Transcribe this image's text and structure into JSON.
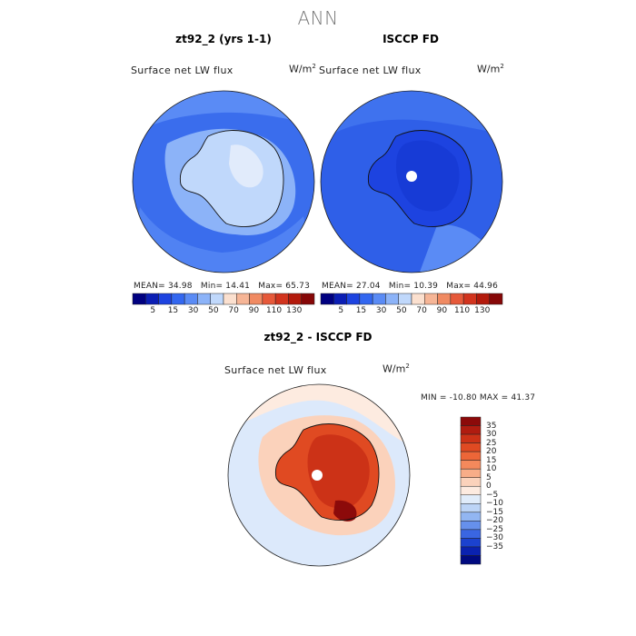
{
  "figure": {
    "title": "ANN"
  },
  "chart_data": [
    {
      "type": "heatmap",
      "panel_title": "zt92_2 (yrs 1-1)",
      "variable": "Surface net LW flux",
      "units": "W/m",
      "units_exp": "2",
      "projection": "south polar stereographic",
      "stats": {
        "mean_label": "MEAN=",
        "mean": "34.98",
        "min_label": "Min=",
        "min": "14.41",
        "max_label": "Max=",
        "max": "65.73"
      },
      "colorbar": {
        "ticks": [
          "5",
          "15",
          "30",
          "50",
          "70",
          "90",
          "110",
          "130"
        ],
        "colors": [
          "#000080",
          "#0b1eb4",
          "#1d43e0",
          "#3367f0",
          "#5a8bf5",
          "#8cb3f8",
          "#c0d8fb",
          "#fbe0cf",
          "#f6b596",
          "#f08a62",
          "#e6593a",
          "#d2341e",
          "#b31a0c",
          "#860707"
        ]
      }
    },
    {
      "type": "heatmap",
      "panel_title": "ISCCP FD",
      "variable": "Surface net LW flux",
      "units": "W/m",
      "units_exp": "2",
      "projection": "south polar stereographic",
      "stats": {
        "mean_label": "MEAN=",
        "mean": "27.04",
        "min_label": "Min=",
        "min": "10.39",
        "max_label": "Max=",
        "max": "44.96"
      },
      "colorbar": {
        "ticks": [
          "5",
          "15",
          "30",
          "50",
          "70",
          "90",
          "110",
          "130"
        ],
        "colors": [
          "#000080",
          "#0b1eb4",
          "#1d43e0",
          "#3367f0",
          "#5a8bf5",
          "#8cb3f8",
          "#c0d8fb",
          "#fbe0cf",
          "#f6b596",
          "#f08a62",
          "#e6593a",
          "#d2341e",
          "#b31a0c",
          "#860707"
        ]
      }
    },
    {
      "type": "heatmap",
      "panel_title": "zt92_2 - ISCCP FD",
      "variable": "Surface net LW flux",
      "units": "W/m",
      "units_exp": "2",
      "projection": "south polar stereographic",
      "stats": {
        "min_label": "MIN =",
        "min": "-10.80",
        "max_label": "MAX =",
        "max": "41.37"
      },
      "colorbar": {
        "orientation": "vertical",
        "ticks": [
          "35",
          "30",
          "25",
          "20",
          "15",
          "10",
          "5",
          "0",
          "−5",
          "−10",
          "−15",
          "−20",
          "−25",
          "−30",
          "−35"
        ],
        "colors": [
          "#8c0a0a",
          "#b01c10",
          "#cc3217",
          "#e04a22",
          "#ed6638",
          "#f4895c",
          "#f8ad88",
          "#fbd2bb",
          "#fdebe0",
          "#e0ecfa",
          "#bcd4f6",
          "#92b6f2",
          "#6690ec",
          "#3a66e2",
          "#1b42cf",
          "#0a22b0",
          "#000a80"
        ]
      }
    }
  ]
}
